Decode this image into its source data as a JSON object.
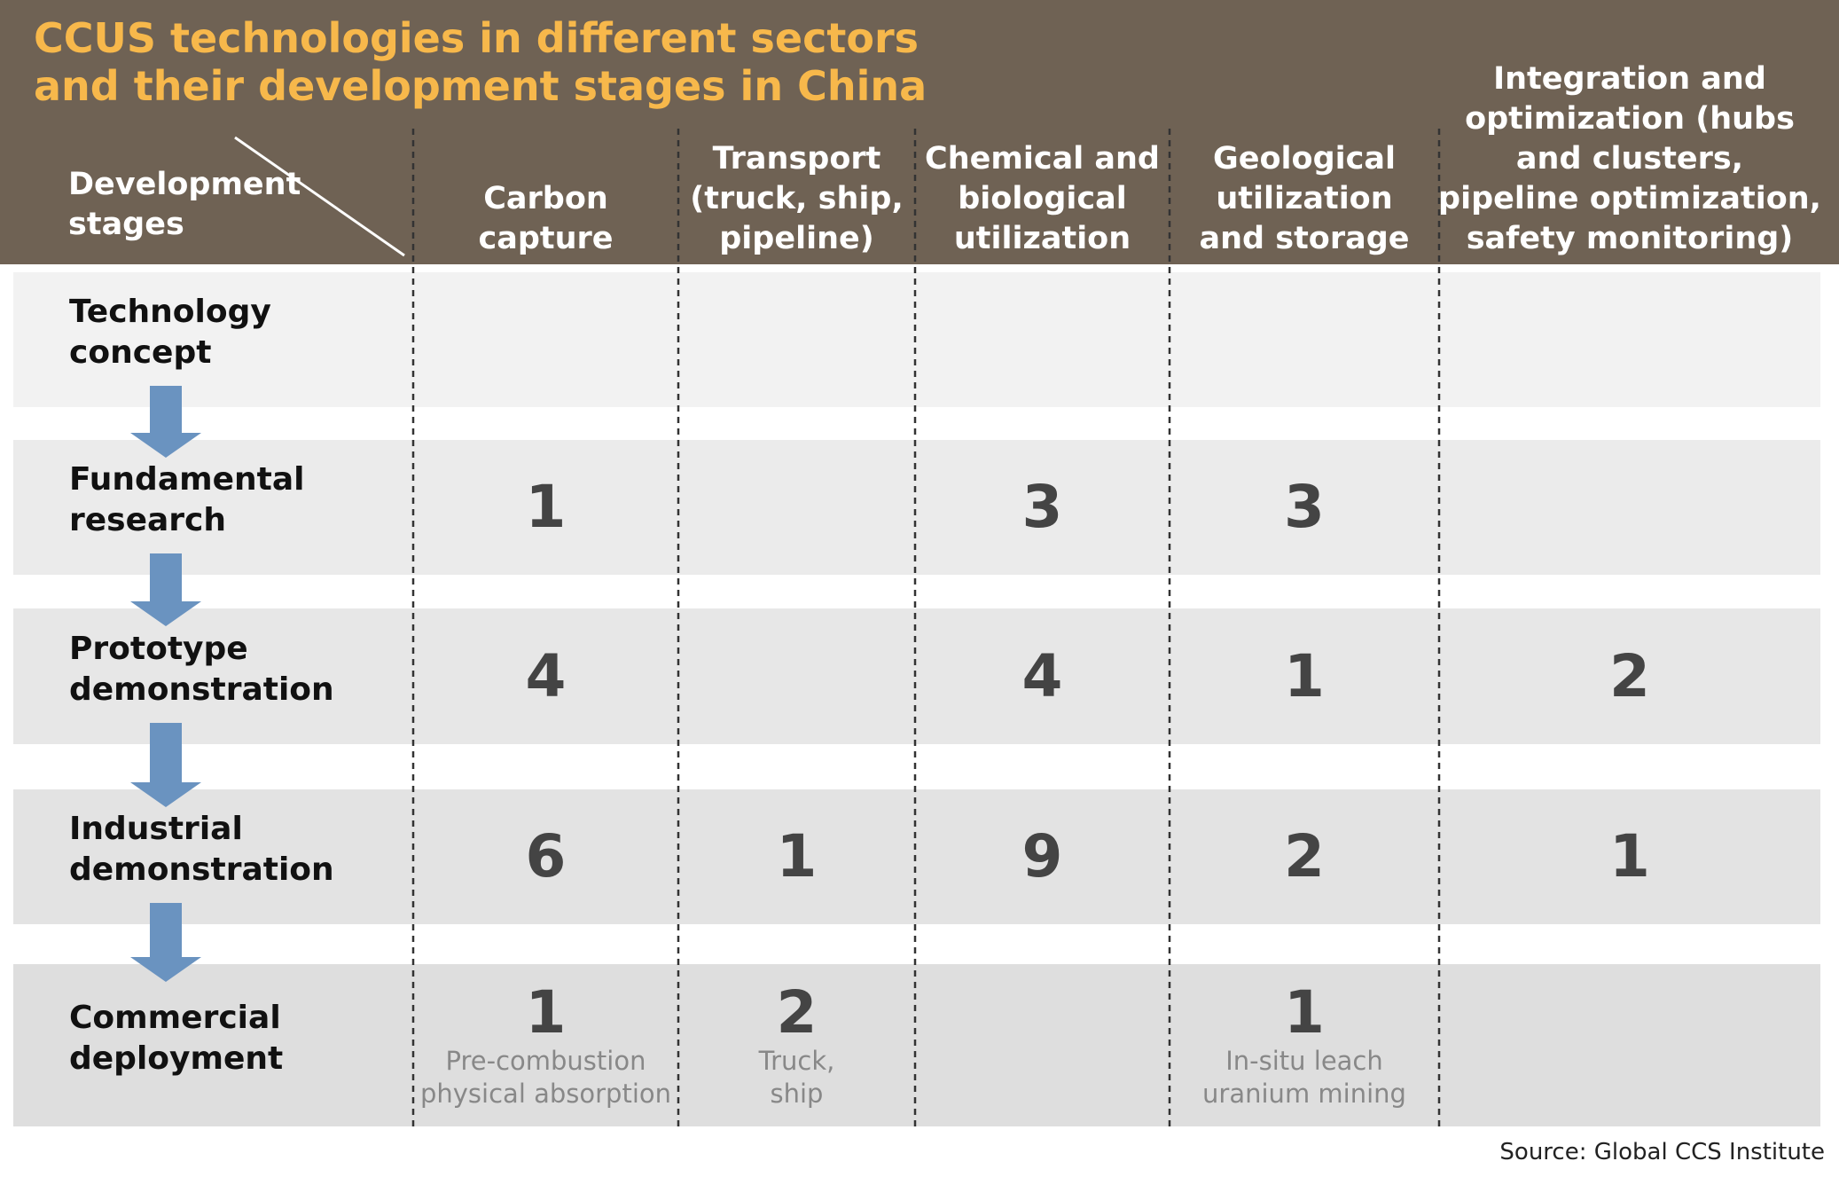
{
  "title": [
    "CCUS technologies in different sectors",
    "and their development stages in China"
  ],
  "corner": [
    "Development",
    "stages"
  ],
  "columns": [
    [
      "Carbon",
      "capture"
    ],
    [
      "Transport",
      "(truck, ship,",
      "pipeline)"
    ],
    [
      "Chemical and",
      "biological",
      "utilization"
    ],
    [
      "Geological",
      "utilization",
      "and storage"
    ],
    [
      "Integration and",
      "optimization (hubs",
      "and clusters,",
      "pipeline optimization,",
      "safety monitoring)"
    ]
  ],
  "rows": [
    {
      "stage": [
        "Technology",
        "concept"
      ],
      "cells": [
        null,
        null,
        null,
        null,
        null
      ]
    },
    {
      "stage": [
        "Fundamental",
        "research"
      ],
      "cells": [
        {
          "value": "1"
        },
        null,
        {
          "value": "3"
        },
        {
          "value": "3"
        },
        null
      ]
    },
    {
      "stage": [
        "Prototype",
        "demonstration"
      ],
      "cells": [
        {
          "value": "4"
        },
        null,
        {
          "value": "4"
        },
        {
          "value": "1"
        },
        {
          "value": "2"
        }
      ]
    },
    {
      "stage": [
        "Industrial",
        "demonstration"
      ],
      "cells": [
        {
          "value": "6"
        },
        {
          "value": "1"
        },
        {
          "value": "9"
        },
        {
          "value": "2"
        },
        {
          "value": "1"
        }
      ]
    },
    {
      "stage": [
        "Commercial",
        "deployment"
      ],
      "cells": [
        {
          "value": "1",
          "note": [
            "Pre-combustion",
            "physical absorption"
          ]
        },
        {
          "value": "2",
          "note": [
            "Truck,",
            "ship"
          ]
        },
        null,
        {
          "value": "1",
          "note": [
            "In-situ leach",
            "uranium mining"
          ]
        },
        null
      ]
    }
  ],
  "source": "Source: Global CCS Institute"
}
